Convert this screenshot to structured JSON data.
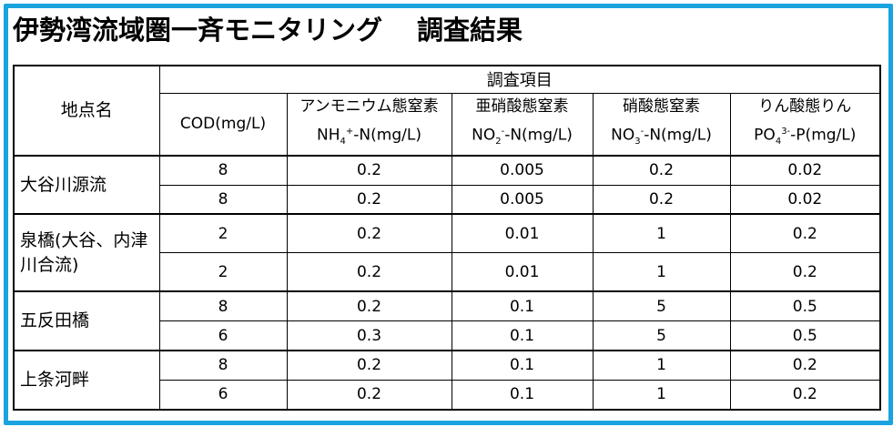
{
  "title": {
    "main": "伊勢湾流域圏一斉モニタリング",
    "sub": "調査結果"
  },
  "table": {
    "site_header": "地点名",
    "group_header": "調査項目",
    "columns": [
      {
        "line1": "COD(mg/L)",
        "line2": ""
      },
      {
        "line1": "アンモニウム態窒素",
        "line2_pre": "NH",
        "line2_sub": "4",
        "line2_sup": "+",
        "line2_post": "-N(mg/L)"
      },
      {
        "line1": "亜硝酸態窒素",
        "line2_pre": "NO",
        "line2_sub": "2",
        "line2_sup": "-",
        "line2_post": "-N(mg/L)"
      },
      {
        "line1": "硝酸態窒素",
        "line2_pre": "NO",
        "line2_sub": "3",
        "line2_sup": "-",
        "line2_post": "-N(mg/L)"
      },
      {
        "line1": "りん酸態りん",
        "line2_pre": "PO",
        "line2_sub": "4",
        "line2_sup": "3-",
        "line2_post": "-P(mg/L)"
      }
    ],
    "sites": [
      {
        "name": "大谷川源流",
        "rows": [
          [
            "8",
            "0.2",
            "0.005",
            "0.2",
            "0.02"
          ],
          [
            "8",
            "0.2",
            "0.005",
            "0.2",
            "0.02"
          ]
        ]
      },
      {
        "name": "泉橋(大谷、内津川合流)",
        "rows": [
          [
            "2",
            "0.2",
            "0.01",
            "1",
            "0.2"
          ],
          [
            "2",
            "0.2",
            "0.01",
            "1",
            "0.2"
          ]
        ]
      },
      {
        "name": "五反田橋",
        "rows": [
          [
            "8",
            "0.2",
            "0.1",
            "5",
            "0.5"
          ],
          [
            "6",
            "0.3",
            "0.1",
            "5",
            "0.5"
          ]
        ]
      },
      {
        "name": "上条河畔",
        "rows": [
          [
            "8",
            "0.2",
            "0.1",
            "1",
            "0.2"
          ],
          [
            "6",
            "0.2",
            "0.1",
            "1",
            "0.2"
          ]
        ]
      }
    ]
  },
  "colors": {
    "border": "#1aa3df"
  }
}
